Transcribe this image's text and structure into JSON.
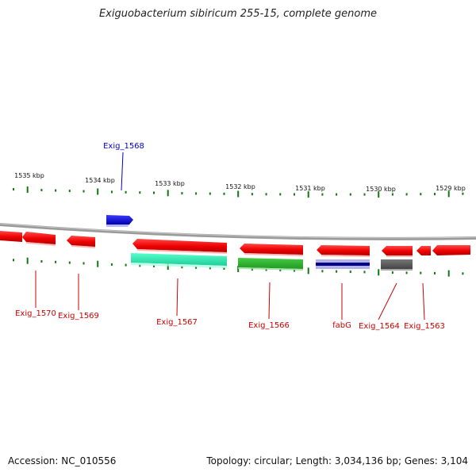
{
  "title": "Exiguobacterium sibiricum 255-15, complete genome",
  "footer": {
    "accession": "Accession: NC_010556",
    "topology": "Topology: circular; Length: 3,034,136 bp; Genes: 3,104"
  },
  "ticks": [
    "1535 kbp",
    "1534 kbp",
    "1533 kbp",
    "1532 kbp",
    "1531 kbp",
    "1530 kbp",
    "1529 kbp"
  ],
  "gene_labels": {
    "exig_1568": "Exig_1568",
    "exig_1570": "Exig_1570",
    "exig_1569": "Exig_1569",
    "exig_1567": "Exig_1567",
    "exig_1566": "Exig_1566",
    "fabg": "fabG",
    "exig_1564": "Exig_1564",
    "exig_1563": "Exig_1563"
  },
  "colors": {
    "gene_reverse": "#ff0000",
    "gene_forward": "#0000ee",
    "label_reverse": "#cc0000",
    "label_forward": "#0000cc",
    "tick": "#117711",
    "backbone": "#888888",
    "cog_teal": "#33ffbb",
    "cog_green": "#33bb33",
    "cog_navy": "#000088",
    "cog_gray": "#555555"
  }
}
